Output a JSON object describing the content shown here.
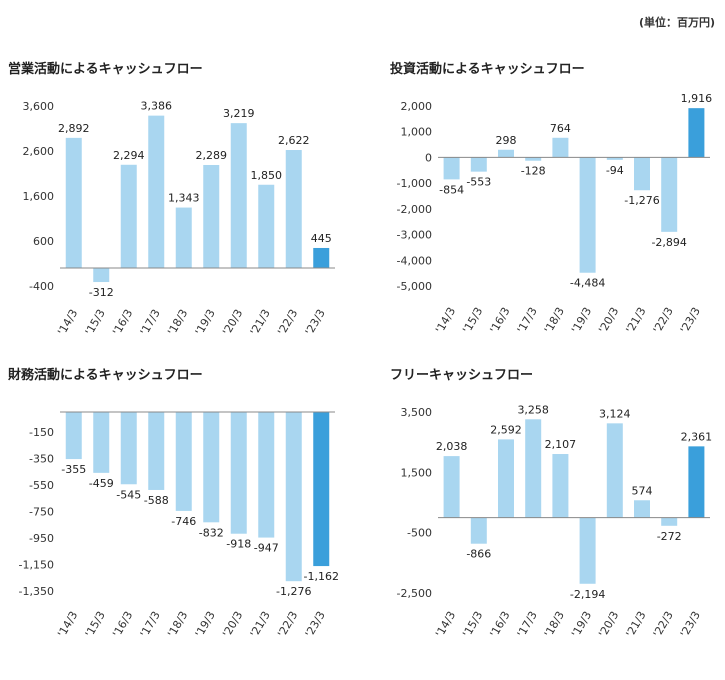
{
  "unit_note": "(単位：百万円)",
  "colors": {
    "bar": "#a9d6f0",
    "highlight": "#3a9fdb",
    "axis": "#888888"
  },
  "chart_data": [
    {
      "id": "operating",
      "type": "bar",
      "title": "営業活動によるキャッシュフロー",
      "categories": [
        "'14/3",
        "'15/3",
        "'16/3",
        "'17/3",
        "'18/3",
        "'19/3",
        "'20/3",
        "'21/3",
        "'22/3",
        "'23/3"
      ],
      "values": [
        2892,
        -312,
        2294,
        3386,
        1343,
        2289,
        3219,
        1850,
        2622,
        445
      ],
      "value_labels": [
        "2,892",
        "-312",
        "2,294",
        "3,386",
        "1,343",
        "2,289",
        "3,219",
        "1,850",
        "2,622",
        "445"
      ],
      "yticks": [
        3600,
        2600,
        1600,
        600,
        -400
      ],
      "ytick_labels": [
        "3,600",
        "2,600",
        "1,600",
        "600",
        "-400"
      ],
      "ylim": [
        -400,
        3600
      ],
      "highlight_index": 9
    },
    {
      "id": "investing",
      "type": "bar",
      "title": "投資活動によるキャッシュフロー",
      "categories": [
        "'14/3",
        "'15/3",
        "'16/3",
        "'17/3",
        "'18/3",
        "'19/3",
        "'20/3",
        "'21/3",
        "'22/3",
        "'23/3"
      ],
      "values": [
        -854,
        -553,
        298,
        -128,
        764,
        -4484,
        -94,
        -1276,
        -2894,
        1916
      ],
      "value_labels": [
        "-854",
        "-553",
        "298",
        "-128",
        "764",
        "-4,484",
        "-94",
        "-1,276",
        "-2,894",
        "1,916"
      ],
      "yticks": [
        2000,
        1000,
        0,
        -1000,
        -2000,
        -3000,
        -4000,
        -5000
      ],
      "ytick_labels": [
        "2,000",
        "1,000",
        "0",
        "-1,000",
        "-2,000",
        "-3,000",
        "-4,000",
        "-5,000"
      ],
      "ylim": [
        -5000,
        2000
      ],
      "highlight_index": 9
    },
    {
      "id": "financing",
      "type": "bar",
      "title": "財務活動によるキャッシュフロー",
      "categories": [
        "'14/3",
        "'15/3",
        "'16/3",
        "'17/3",
        "'18/3",
        "'19/3",
        "'20/3",
        "'21/3",
        "'22/3",
        "'23/3"
      ],
      "values": [
        -355,
        -459,
        -545,
        -588,
        -746,
        -832,
        -918,
        -947,
        -1276,
        -1162
      ],
      "value_labels": [
        "-355",
        "-459",
        "-545",
        "-588",
        "-746",
        "-832",
        "-918",
        "-947",
        "-1,276",
        "-1,162"
      ],
      "yticks": [
        -150,
        -350,
        -550,
        -750,
        -950,
        -1150,
        -1350
      ],
      "ytick_labels": [
        "-150",
        "-350",
        "-550",
        "-750",
        "-950",
        "-1,150",
        "-1,350"
      ],
      "ylim": [
        -1350,
        0
      ],
      "highlight_index": 9
    },
    {
      "id": "free",
      "type": "bar",
      "title": "フリーキャッシュフロー",
      "categories": [
        "'14/3",
        "'15/3",
        "'16/3",
        "'17/3",
        "'18/3",
        "'19/3",
        "'20/3",
        "'21/3",
        "'22/3",
        "'23/3"
      ],
      "values": [
        2038,
        -866,
        2592,
        3258,
        2107,
        -2194,
        3124,
        574,
        -272,
        2361
      ],
      "value_labels": [
        "2,038",
        "-866",
        "2,592",
        "3,258",
        "2,107",
        "-2,194",
        "3,124",
        "574",
        "-272",
        "2,361"
      ],
      "yticks": [
        3500,
        1500,
        -500,
        -2500
      ],
      "ytick_labels": [
        "3,500",
        "1,500",
        "-500",
        "-2,500"
      ],
      "ylim": [
        -2500,
        3500
      ],
      "highlight_index": 9
    }
  ]
}
